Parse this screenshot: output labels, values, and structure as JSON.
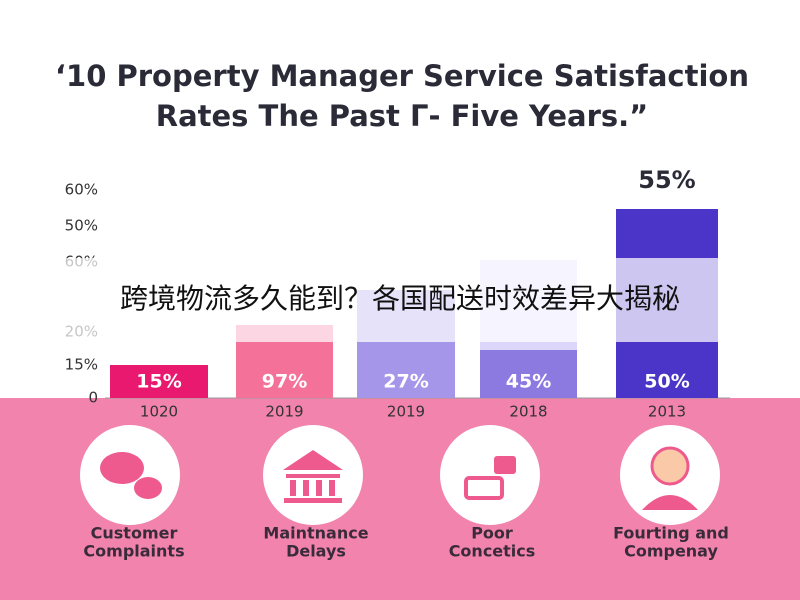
{
  "title": [
    "‘10 Property Manager Service Satisfaction",
    "Rates The Past Г- Five Years.”"
  ],
  "axis_labels": [
    "60%",
    "50%",
    "60%",
    "20%",
    "15%",
    "0"
  ],
  "top_label": "55%",
  "bars": [
    {
      "label": "15%",
      "category": "1020"
    },
    {
      "label": "97%",
      "category": "2019"
    },
    {
      "label": "27%",
      "category": "2019"
    },
    {
      "label": "45%",
      "category": "2018"
    },
    {
      "label": "50%",
      "category": "2013"
    }
  ],
  "icons": [
    [
      "Customer",
      "Complaints"
    ],
    [
      "Maintnance",
      "Delays"
    ],
    [
      "Poor",
      "Concetics"
    ],
    [
      "Fourting and",
      "Compenay"
    ]
  ],
  "banner": "跨境物流多久能到？各国配送时效差异大揭秘"
}
